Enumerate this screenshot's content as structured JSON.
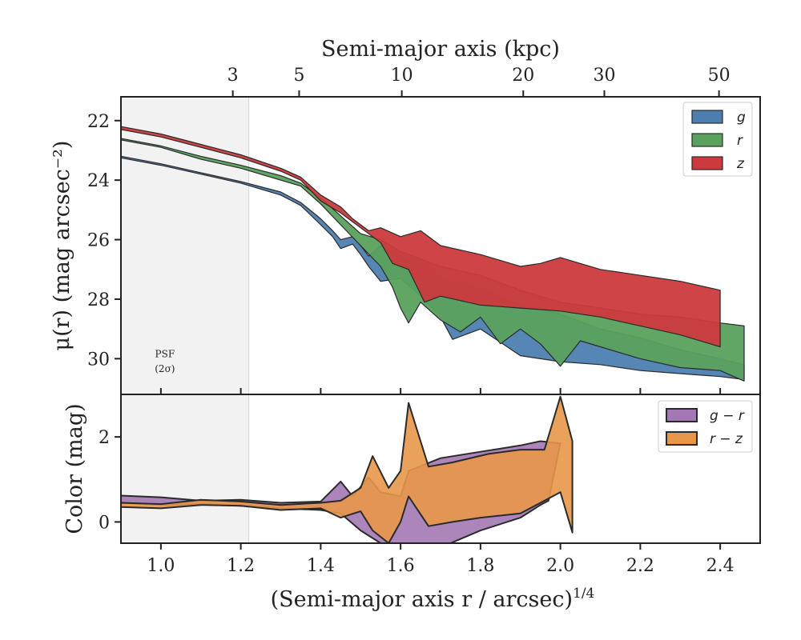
{
  "chart_data": [
    {
      "type": "area",
      "panel": "surface-brightness",
      "ylabel": "μ(r) (mag arcsec⁻²)",
      "top_xlabel": "Semi-major axis (kpc)",
      "top_ticks": [
        {
          "label": "3",
          "x": 1.18
        },
        {
          "label": "5",
          "x": 1.346
        },
        {
          "label": "10",
          "x": 1.603
        },
        {
          "label": "20",
          "x": 1.907
        },
        {
          "label": "30",
          "x": 2.11
        },
        {
          "label": "50",
          "x": 2.397
        }
      ],
      "xlim": [
        0.9,
        2.5
      ],
      "ylim": [
        31.2,
        21.2
      ],
      "yticks": [
        22,
        24,
        26,
        28,
        30
      ],
      "shaded_region": {
        "x0": 0.9,
        "x1": 1.22,
        "label_line1": "PSF",
        "label_line2": "(2σ)"
      },
      "legend": {
        "placement": "upper-right",
        "entries": [
          "g",
          "r",
          "z"
        ]
      },
      "series": [
        {
          "name": "g",
          "color": "#4c7fb0",
          "upper": [
            [
              0.9,
              23.2
            ],
            [
              1.0,
              23.45
            ],
            [
              1.1,
              23.75
            ],
            [
              1.2,
              24.05
            ],
            [
              1.3,
              24.4
            ],
            [
              1.35,
              24.75
            ],
            [
              1.4,
              25.3
            ],
            [
              1.43,
              25.7
            ],
            [
              1.45,
              26.0
            ],
            [
              1.48,
              25.9
            ],
            [
              1.5,
              26.2
            ],
            [
              1.52,
              26.55
            ],
            [
              1.55,
              26.2
            ],
            [
              1.6,
              26.6
            ],
            [
              1.65,
              26.7
            ],
            [
              1.7,
              27.3
            ],
            [
              1.8,
              27.6
            ],
            [
              1.9,
              28.2
            ],
            [
              2.0,
              28.5
            ],
            [
              2.1,
              29.0
            ],
            [
              2.2,
              29.3
            ],
            [
              2.3,
              29.7
            ],
            [
              2.4,
              30.0
            ],
            [
              2.46,
              30.2
            ]
          ],
          "lower": [
            [
              0.9,
              23.25
            ],
            [
              1.0,
              23.5
            ],
            [
              1.1,
              23.8
            ],
            [
              1.2,
              24.1
            ],
            [
              1.3,
              24.5
            ],
            [
              1.35,
              24.85
            ],
            [
              1.4,
              25.5
            ],
            [
              1.43,
              25.9
            ],
            [
              1.45,
              26.3
            ],
            [
              1.48,
              26.15
            ],
            [
              1.5,
              26.5
            ],
            [
              1.52,
              26.9
            ],
            [
              1.55,
              27.4
            ],
            [
              1.6,
              27.3
            ],
            [
              1.65,
              27.9
            ],
            [
              1.7,
              28.6
            ],
            [
              1.73,
              29.35
            ],
            [
              1.8,
              29.0
            ],
            [
              1.9,
              29.9
            ],
            [
              2.0,
              30.1
            ],
            [
              2.1,
              30.2
            ],
            [
              2.2,
              30.4
            ],
            [
              2.3,
              30.5
            ],
            [
              2.4,
              30.6
            ],
            [
              2.46,
              30.7
            ]
          ]
        },
        {
          "name": "r",
          "color": "#5aa15e",
          "upper": [
            [
              0.9,
              22.6
            ],
            [
              1.0,
              22.85
            ],
            [
              1.1,
              23.2
            ],
            [
              1.2,
              23.5
            ],
            [
              1.3,
              23.85
            ],
            [
              1.35,
              24.1
            ],
            [
              1.4,
              24.6
            ],
            [
              1.45,
              25.2
            ],
            [
              1.5,
              25.8
            ],
            [
              1.55,
              26.0
            ],
            [
              1.6,
              26.4
            ],
            [
              1.7,
              26.9
            ],
            [
              1.8,
              27.2
            ],
            [
              1.9,
              27.7
            ],
            [
              2.0,
              28.1
            ],
            [
              2.1,
              28.3
            ],
            [
              2.2,
              28.5
            ],
            [
              2.3,
              28.6
            ],
            [
              2.4,
              28.8
            ],
            [
              2.46,
              28.9
            ]
          ],
          "lower": [
            [
              0.9,
              22.65
            ],
            [
              1.0,
              22.9
            ],
            [
              1.1,
              23.3
            ],
            [
              1.2,
              23.6
            ],
            [
              1.3,
              24.0
            ],
            [
              1.35,
              24.2
            ],
            [
              1.4,
              24.8
            ],
            [
              1.45,
              25.5
            ],
            [
              1.5,
              26.2
            ],
            [
              1.55,
              26.9
            ],
            [
              1.58,
              27.6
            ],
            [
              1.6,
              28.3
            ],
            [
              1.62,
              28.8
            ],
            [
              1.65,
              28.1
            ],
            [
              1.7,
              28.7
            ],
            [
              1.75,
              29.1
            ],
            [
              1.8,
              28.6
            ],
            [
              1.85,
              29.5
            ],
            [
              1.9,
              29.0
            ],
            [
              1.95,
              29.5
            ],
            [
              2.0,
              30.25
            ],
            [
              2.05,
              29.4
            ],
            [
              2.1,
              29.6
            ],
            [
              2.2,
              30.0
            ],
            [
              2.3,
              30.3
            ],
            [
              2.4,
              30.4
            ],
            [
              2.46,
              30.75
            ]
          ]
        },
        {
          "name": "z",
          "color": "#cc3a3d",
          "upper": [
            [
              0.9,
              22.2
            ],
            [
              1.0,
              22.45
            ],
            [
              1.1,
              22.8
            ],
            [
              1.2,
              23.15
            ],
            [
              1.3,
              23.6
            ],
            [
              1.35,
              23.9
            ],
            [
              1.4,
              24.5
            ],
            [
              1.45,
              24.9
            ],
            [
              1.48,
              25.3
            ],
            [
              1.52,
              25.7
            ],
            [
              1.55,
              25.6
            ],
            [
              1.6,
              25.9
            ],
            [
              1.65,
              25.7
            ],
            [
              1.7,
              26.2
            ],
            [
              1.8,
              26.5
            ],
            [
              1.9,
              26.9
            ],
            [
              1.95,
              26.8
            ],
            [
              2.0,
              26.6
            ],
            [
              2.1,
              27.0
            ],
            [
              2.2,
              27.2
            ],
            [
              2.3,
              27.4
            ],
            [
              2.4,
              27.7
            ]
          ],
          "lower": [
            [
              0.9,
              22.3
            ],
            [
              1.0,
              22.55
            ],
            [
              1.1,
              22.9
            ],
            [
              1.2,
              23.25
            ],
            [
              1.3,
              23.7
            ],
            [
              1.35,
              24.0
            ],
            [
              1.4,
              24.7
            ],
            [
              1.45,
              25.1
            ],
            [
              1.5,
              25.6
            ],
            [
              1.55,
              26.1
            ],
            [
              1.58,
              26.8
            ],
            [
              1.62,
              27.0
            ],
            [
              1.66,
              28.1
            ],
            [
              1.7,
              27.9
            ],
            [
              1.8,
              28.2
            ],
            [
              1.9,
              28.3
            ],
            [
              2.0,
              28.4
            ],
            [
              2.1,
              28.6
            ],
            [
              2.2,
              28.9
            ],
            [
              2.3,
              29.2
            ],
            [
              2.4,
              29.6
            ]
          ]
        }
      ]
    },
    {
      "type": "area",
      "panel": "color",
      "xlabel": "(Semi-major axis r / arcsec)^1/4",
      "xlabel_main": "(Semi-major axis r / arcsec)",
      "xlabel_sup": "1/4",
      "ylabel": "Color (mag)",
      "xlim": [
        0.9,
        2.5
      ],
      "ylim": [
        -0.5,
        3.0
      ],
      "xticks": [
        "1.0",
        "1.2",
        "1.4",
        "1.6",
        "1.8",
        "2.0",
        "2.2",
        "2.4"
      ],
      "yticks": [
        0,
        2
      ],
      "legend": {
        "placement": "upper-right",
        "entries": [
          "g − r",
          "r − z"
        ]
      },
      "series": [
        {
          "name": "g − r",
          "color": "#a378b4",
          "upper": [
            [
              0.9,
              0.62
            ],
            [
              1.0,
              0.58
            ],
            [
              1.1,
              0.5
            ],
            [
              1.2,
              0.52
            ],
            [
              1.3,
              0.45
            ],
            [
              1.4,
              0.48
            ],
            [
              1.45,
              0.95
            ],
            [
              1.48,
              0.6
            ],
            [
              1.52,
              1.05
            ],
            [
              1.55,
              0.7
            ],
            [
              1.6,
              0.6
            ],
            [
              1.62,
              1.2
            ],
            [
              1.7,
              1.5
            ],
            [
              1.8,
              1.65
            ],
            [
              1.9,
              1.8
            ],
            [
              1.95,
              1.9
            ],
            [
              2.0,
              1.85
            ]
          ],
          "lower": [
            [
              0.9,
              0.45
            ],
            [
              1.0,
              0.4
            ],
            [
              1.1,
              0.42
            ],
            [
              1.2,
              0.38
            ],
            [
              1.3,
              0.32
            ],
            [
              1.4,
              0.28
            ],
            [
              1.45,
              0.2
            ],
            [
              1.5,
              -0.2
            ],
            [
              1.55,
              -0.5
            ],
            [
              1.6,
              -0.6
            ],
            [
              1.62,
              -0.6
            ],
            [
              1.65,
              -0.5
            ],
            [
              1.7,
              -0.6
            ],
            [
              1.8,
              -0.2
            ],
            [
              1.9,
              0.1
            ],
            [
              1.95,
              0.4
            ],
            [
              1.97,
              0.5
            ]
          ]
        },
        {
          "name": "r − z",
          "color": "#e8974a",
          "upper": [
            [
              0.9,
              0.45
            ],
            [
              1.0,
              0.42
            ],
            [
              1.1,
              0.52
            ],
            [
              1.2,
              0.48
            ],
            [
              1.3,
              0.4
            ],
            [
              1.4,
              0.45
            ],
            [
              1.45,
              0.5
            ],
            [
              1.5,
              0.8
            ],
            [
              1.53,
              1.55
            ],
            [
              1.57,
              0.8
            ],
            [
              1.6,
              1.2
            ],
            [
              1.62,
              2.8
            ],
            [
              1.67,
              1.3
            ],
            [
              1.73,
              1.4
            ],
            [
              1.82,
              1.6
            ],
            [
              1.9,
              1.7
            ],
            [
              1.96,
              1.7
            ],
            [
              2.0,
              2.95
            ],
            [
              2.03,
              1.9
            ]
          ],
          "lower": [
            [
              0.9,
              0.35
            ],
            [
              1.0,
              0.32
            ],
            [
              1.1,
              0.4
            ],
            [
              1.2,
              0.38
            ],
            [
              1.3,
              0.28
            ],
            [
              1.4,
              0.32
            ],
            [
              1.45,
              0.1
            ],
            [
              1.5,
              0.25
            ],
            [
              1.53,
              -0.2
            ],
            [
              1.57,
              -0.5
            ],
            [
              1.6,
              0.0
            ],
            [
              1.62,
              0.6
            ],
            [
              1.67,
              -0.1
            ],
            [
              1.73,
              0.0
            ],
            [
              1.8,
              0.1
            ],
            [
              1.9,
              0.2
            ],
            [
              1.96,
              0.5
            ],
            [
              2.0,
              0.7
            ],
            [
              2.03,
              -0.25
            ]
          ]
        }
      ]
    }
  ]
}
